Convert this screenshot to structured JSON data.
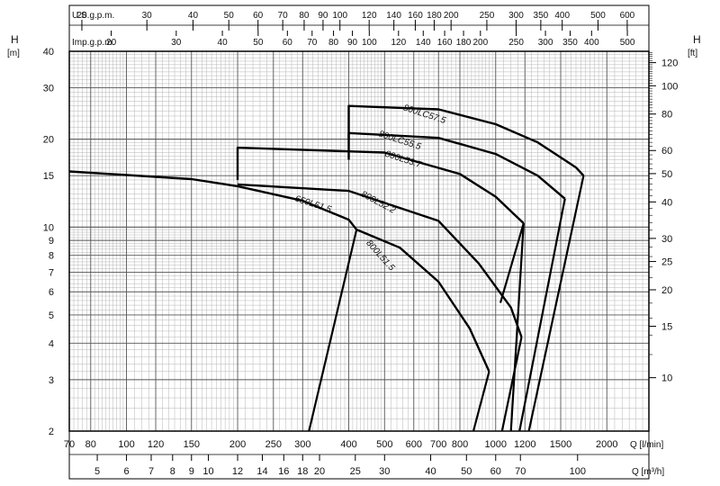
{
  "chart_data": {
    "type": "line",
    "x_scale": "log",
    "y_scale": "log",
    "left_axis": {
      "title": "H",
      "unit": "[m]",
      "ticks": [
        2,
        3,
        4,
        5,
        6,
        7,
        8,
        9,
        10,
        15,
        20,
        30,
        40
      ],
      "range": [
        2,
        40
      ]
    },
    "right_axis": {
      "title": "H",
      "unit": "[ft]",
      "ticks": [
        10,
        15,
        20,
        25,
        30,
        40,
        50,
        60,
        80,
        100,
        120
      ]
    },
    "bottom_axis_lpm": {
      "label": "Q [l/min]",
      "ticks": [
        70,
        80,
        100,
        120,
        150,
        200,
        250,
        300,
        400,
        500,
        600,
        700,
        800,
        1000,
        1200,
        1500,
        2000
      ],
      "range": [
        70,
        2600
      ]
    },
    "bottom_axis_m3h": {
      "label": "Q [m³/h]",
      "ticks": [
        5,
        6,
        7,
        8,
        9,
        10,
        12,
        14,
        16,
        18,
        20,
        25,
        30,
        40,
        50,
        60,
        70,
        100
      ]
    },
    "top_axis_usgpm": {
      "label": "U.S.g.p.m.",
      "ticks": [
        20,
        30,
        40,
        50,
        60,
        70,
        80,
        90,
        100,
        120,
        140,
        160,
        180,
        200,
        250,
        300,
        350,
        400,
        500,
        600
      ]
    },
    "top_axis_impgpm": {
      "label": "Imp.g.p.m.",
      "ticks": [
        20,
        30,
        40,
        50,
        60,
        70,
        80,
        90,
        100,
        120,
        140,
        160,
        180,
        200,
        250,
        300,
        350,
        400,
        500
      ]
    },
    "grid": true,
    "series": [
      {
        "name": "800LC57.5",
        "label_at": [
          560,
          25.2
        ],
        "x": [
          400,
          400,
          700,
          1000,
          1300,
          1650,
          1730
        ],
        "y": [
          20,
          26,
          25.3,
          22.5,
          19.5,
          16,
          15
        ]
      },
      {
        "name": "800LC55.5",
        "label_at": [
          480,
          20.5
        ],
        "x": [
          400,
          400,
          700,
          1000,
          1300,
          1540
        ],
        "y": [
          17,
          21,
          20.2,
          17.8,
          15,
          12.5
        ]
      },
      {
        "name": "800L53.7",
        "label_at": [
          500,
          17.5
        ],
        "x": [
          200,
          200,
          500,
          800,
          1000,
          1190
        ],
        "y": [
          14.5,
          18.7,
          18,
          15.2,
          12.7,
          10.3
        ]
      },
      {
        "name": "800L52.2",
        "label_at": [
          430,
          12.8
        ],
        "x": [
          200,
          400,
          700,
          900,
          1100,
          1175
        ],
        "y": [
          14,
          13.3,
          10.5,
          7.5,
          5.3,
          4.2
        ]
      },
      {
        "name": "650L51.5",
        "label_at": [
          285,
          12.3
        ],
        "x": [
          70,
          150,
          200,
          300,
          400,
          420
        ],
        "y": [
          15.5,
          14.6,
          13.8,
          12.3,
          10.6,
          9.8
        ]
      },
      {
        "name": "800L51.5",
        "label_at": [
          445,
          8.8
        ],
        "x": [
          420,
          550,
          700,
          850,
          960
        ],
        "y": [
          9.8,
          8.5,
          6.5,
          4.5,
          3.2
        ]
      }
    ],
    "npsh_lines": [
      {
        "x": [
          312,
          420
        ],
        "y": [
          2,
          9.8
        ]
      },
      {
        "x": [
          870,
          960
        ],
        "y": [
          2,
          3.2
        ]
      },
      {
        "x": [
          1040,
          1175
        ],
        "y": [
          2,
          4.2
        ]
      },
      {
        "x": [
          1100,
          1190
        ],
        "y": [
          2,
          10.3
        ]
      },
      {
        "x": [
          1160,
          1540
        ],
        "y": [
          2,
          12.5
        ]
      },
      {
        "x": [
          1230,
          1730
        ],
        "y": [
          2,
          15
        ]
      },
      {
        "x": [
          1030,
          1190
        ],
        "y": [
          5.5,
          10.3
        ]
      }
    ]
  }
}
